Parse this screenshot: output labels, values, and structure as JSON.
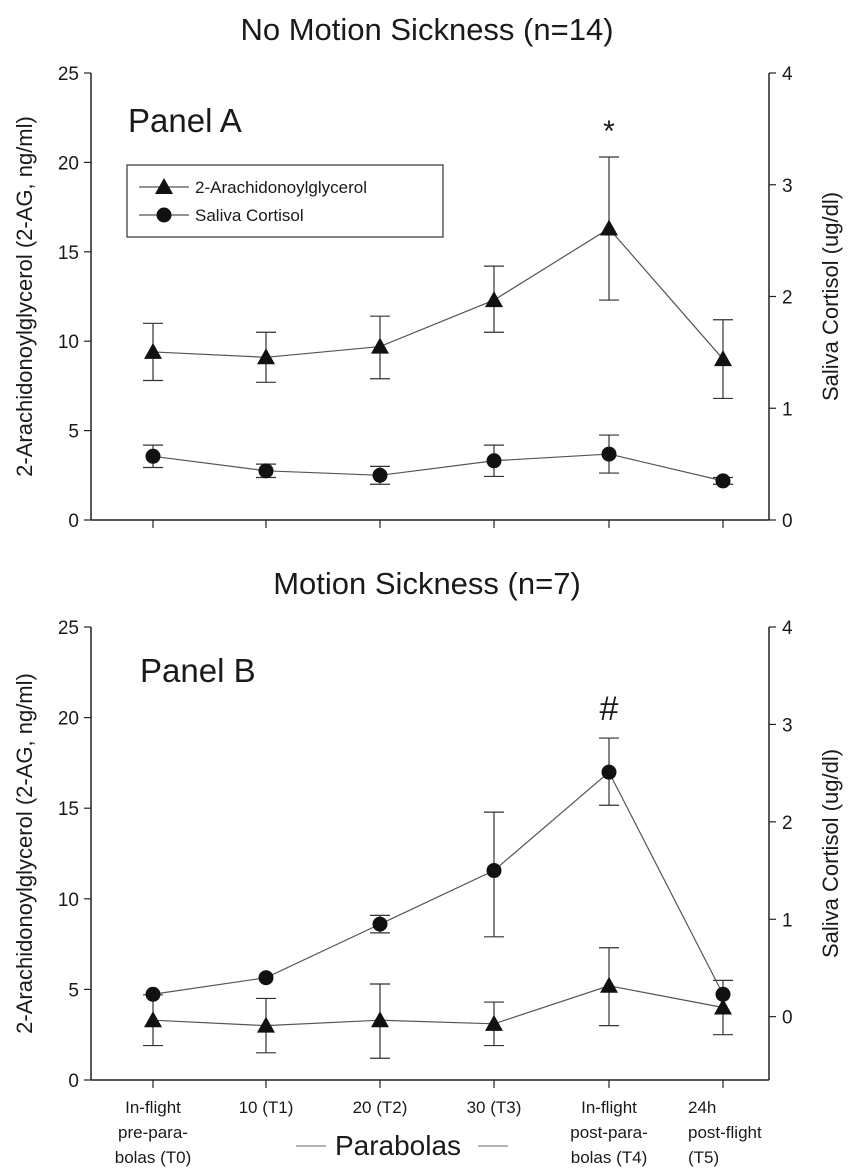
{
  "chart_data": [
    {
      "type": "line",
      "title": "No Motion Sickness (n=14)",
      "panel_label": "Panel A",
      "annotation": "*",
      "ylabel_left": "2-Arachidonoylglycerol (2-AG, ng/ml)",
      "ylabel_right": "Saliva Cortisol (ug/dl)",
      "ylim_left": [
        0,
        25
      ],
      "yticks_left": [
        "0",
        "5",
        "10",
        "15",
        "20",
        "25"
      ],
      "ylim_right": [
        0,
        4
      ],
      "yticks_right": [
        "0",
        "1",
        "2",
        "3",
        "4"
      ],
      "categories": [
        "T0",
        "T1",
        "T2",
        "T3",
        "T4",
        "T5"
      ],
      "legend": {
        "placement": "upper-left",
        "entries": [
          {
            "label": "2-Arachidonoylglycerol",
            "marker": "triangle"
          },
          {
            "label": "Saliva Cortisol",
            "marker": "circle"
          }
        ]
      },
      "series": [
        {
          "name": "2-Arachidonoylglycerol",
          "axis": "left",
          "marker": "triangle",
          "values": [
            9.4,
            9.1,
            9.7,
            12.3,
            16.3,
            9.0
          ],
          "err_low": [
            7.8,
            7.7,
            7.9,
            10.5,
            12.3,
            6.8
          ],
          "err_high": [
            11.0,
            10.5,
            11.4,
            14.2,
            20.3,
            11.2
          ]
        },
        {
          "name": "Saliva Cortisol",
          "axis": "right",
          "marker": "circle",
          "values": [
            0.57,
            0.44,
            0.4,
            0.53,
            0.59,
            0.35
          ],
          "err_low": [
            0.47,
            0.38,
            0.32,
            0.39,
            0.42,
            0.32
          ],
          "err_high": [
            0.67,
            0.5,
            0.48,
            0.67,
            0.76,
            0.38
          ]
        }
      ]
    },
    {
      "type": "line",
      "title": "Motion Sickness (n=7)",
      "panel_label": "Panel B",
      "annotation": "#",
      "ylabel_left": "2-Arachidonoylglycerol (2-AG, ng/ml)",
      "ylabel_right": "Saliva Cortisol (ug/dl)",
      "ylim_left": [
        0,
        25
      ],
      "yticks_left": [
        "0",
        "5",
        "10",
        "15",
        "20",
        "25"
      ],
      "ylim_right": [
        -0.65,
        4
      ],
      "yticks_right": [
        "0",
        "1",
        "2",
        "3",
        "4"
      ],
      "categories": [
        "In-flight pre-para- bolas (T0)",
        "10 (T1)",
        "20 (T2)",
        "30 (T3)",
        "In-flight post-para- bolas (T4)",
        "24h post-flight (T5)"
      ],
      "category_lines": [
        [
          "In-flight",
          "pre-para-",
          "bolas (T0)"
        ],
        [
          "10 (T1)"
        ],
        [
          "20 (T2)"
        ],
        [
          "30 (T3)"
        ],
        [
          "In-flight",
          "post-para-",
          "bolas (T4)"
        ],
        [
          "24h",
          "post-flight",
          "(T5)"
        ]
      ],
      "xlabel": "Parabolas",
      "series": [
        {
          "name": "2-Arachidonoylglycerol",
          "axis": "left",
          "marker": "triangle",
          "values": [
            3.3,
            3.0,
            3.3,
            3.1,
            5.2,
            4.0
          ],
          "err_low": [
            1.9,
            1.5,
            1.2,
            1.9,
            3.0,
            2.5
          ],
          "err_high": [
            4.7,
            4.5,
            5.3,
            4.3,
            7.3,
            5.5
          ]
        },
        {
          "name": "Saliva Cortisol",
          "axis": "right",
          "marker": "circle",
          "values": [
            0.23,
            0.4,
            0.95,
            1.5,
            2.51,
            0.23
          ],
          "err_low": [
            0.23,
            0.4,
            0.86,
            0.82,
            2.17,
            0.23
          ],
          "err_high": [
            0.23,
            0.4,
            1.04,
            2.1,
            2.86,
            0.23
          ]
        }
      ]
    }
  ]
}
